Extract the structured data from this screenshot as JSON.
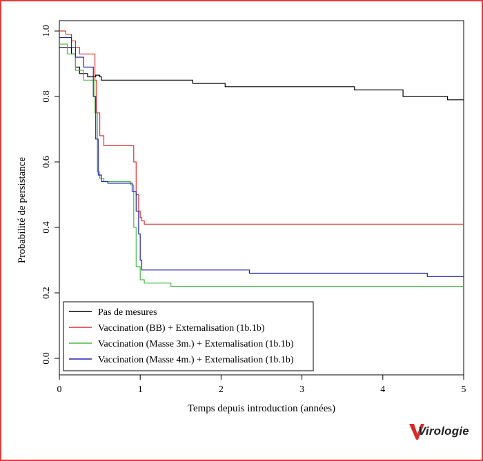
{
  "chart_data": {
    "type": "line",
    "step": true,
    "title": "",
    "xlabel": "Temps depuis introduction (années)",
    "ylabel": "Probabilité de persistance",
    "xlim": [
      0,
      5
    ],
    "ylim": [
      0,
      1
    ],
    "xticks": [
      "0",
      "1",
      "2",
      "3",
      "4",
      "5"
    ],
    "yticks": [
      "0.0",
      "0.2",
      "0.4",
      "0.6",
      "0.8",
      "1.0"
    ],
    "grid": false,
    "legend_position": "bottom-left",
    "series": [
      {
        "name": "Pas de mesures",
        "color": "#000000",
        "x": [
          0,
          0.15,
          0.2,
          0.25,
          0.35,
          0.45,
          0.5,
          0.52,
          1.05,
          1.65,
          2.05,
          3.65,
          4.25,
          4.8,
          5.0
        ],
        "y": [
          0.95,
          0.93,
          0.89,
          0.87,
          0.86,
          0.865,
          0.86,
          0.85,
          0.85,
          0.84,
          0.83,
          0.82,
          0.8,
          0.79,
          0.79
        ]
      },
      {
        "name": "Vaccination (BB) + Externalisation (1b.1b)",
        "color": "#e03030",
        "x": [
          0,
          0.08,
          0.15,
          0.2,
          0.25,
          0.3,
          0.42,
          0.44,
          0.46,
          0.5,
          0.55,
          0.9,
          0.92,
          0.95,
          0.98,
          1.0,
          1.02,
          1.05,
          5.0
        ],
        "y": [
          1.0,
          0.99,
          0.97,
          0.95,
          0.93,
          0.93,
          0.93,
          0.85,
          0.75,
          0.68,
          0.65,
          0.65,
          0.6,
          0.5,
          0.45,
          0.43,
          0.42,
          0.41,
          0.41
        ]
      },
      {
        "name": "Vaccination (Masse 3m.) + Externalisation (1b.1b)",
        "color": "#44bb44",
        "x": [
          0,
          0.1,
          0.2,
          0.3,
          0.4,
          0.44,
          0.47,
          0.5,
          0.55,
          0.88,
          0.92,
          0.95,
          1.0,
          1.05,
          1.38,
          5.0
        ],
        "y": [
          0.96,
          0.93,
          0.88,
          0.85,
          0.85,
          0.75,
          0.57,
          0.55,
          0.54,
          0.53,
          0.4,
          0.28,
          0.24,
          0.23,
          0.22,
          0.22
        ]
      },
      {
        "name": "Vaccination (Masse 4m.) + Externalisation (1b.1b)",
        "color": "#2222aa",
        "x": [
          0,
          0.15,
          0.2,
          0.3,
          0.42,
          0.45,
          0.48,
          0.52,
          0.6,
          0.9,
          0.95,
          0.98,
          1.0,
          1.02,
          2.35,
          4.55,
          5.0
        ],
        "y": [
          0.98,
          0.95,
          0.92,
          0.89,
          0.8,
          0.67,
          0.56,
          0.54,
          0.535,
          0.51,
          0.45,
          0.38,
          0.3,
          0.27,
          0.26,
          0.25,
          0.25
        ]
      }
    ]
  },
  "logo": {
    "text": "Virologie",
    "accent": "#d82a2a"
  }
}
